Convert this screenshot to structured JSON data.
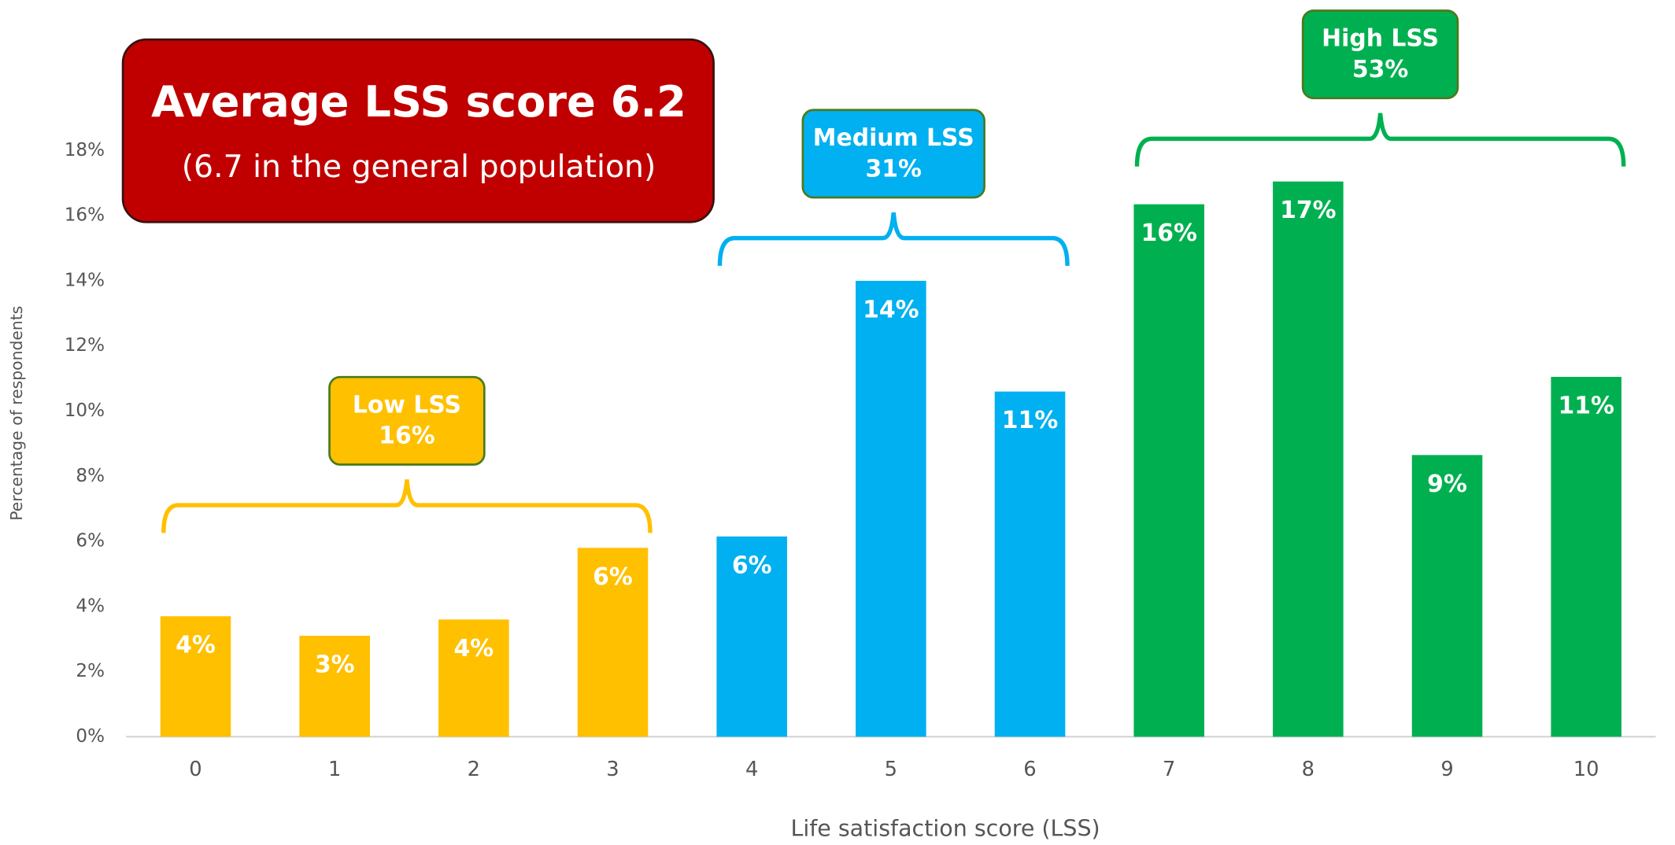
{
  "chart_data": {
    "type": "bar",
    "x_label": "Life satisfaction score (LSS)",
    "y_label": "Percentage of respondents",
    "categories": [
      "0",
      "1",
      "2",
      "3",
      "4",
      "5",
      "6",
      "7",
      "8",
      "9",
      "10"
    ],
    "values": [
      3.7,
      3.1,
      3.6,
      5.8,
      6.15,
      14.0,
      10.6,
      16.35,
      17.05,
      8.65,
      11.05
    ],
    "value_labels": [
      "4%",
      "3%",
      "4%",
      "6%",
      "6%",
      "14%",
      "11%",
      "16%",
      "17%",
      "9%",
      "11%"
    ],
    "colors": [
      "#FFC000",
      "#FFC000",
      "#FFC000",
      "#FFC000",
      "#00B0F0",
      "#00B0F0",
      "#00B0F0",
      "#00B050",
      "#00B050",
      "#00B050",
      "#00B050"
    ],
    "ylim": [
      0,
      20
    ],
    "yticks": [
      {
        "value": 0,
        "label": "0%"
      },
      {
        "value": 2,
        "label": "2%"
      },
      {
        "value": 4,
        "label": "4%"
      },
      {
        "value": 6,
        "label": "6%"
      },
      {
        "value": 8,
        "label": "8%"
      },
      {
        "value": 10,
        "label": "10%"
      },
      {
        "value": 12,
        "label": "12%"
      },
      {
        "value": 14,
        "label": "14%"
      },
      {
        "value": 16,
        "label": "16%"
      },
      {
        "value": 18,
        "label": "18%"
      }
    ],
    "groups": [
      {
        "label": "Low LSS",
        "share": 16,
        "share_label": "16%",
        "color": "#FFC000"
      },
      {
        "label": "Medium LSS",
        "share": 31,
        "share_label": "31%",
        "color": "#00B0F0"
      },
      {
        "label": "High LSS",
        "share": 53,
        "share_label": "53%",
        "color": "#00B050"
      }
    ],
    "callout": {
      "title": "Average LSS score 6.2",
      "subtitle": "(6.7 in the general population)"
    }
  }
}
